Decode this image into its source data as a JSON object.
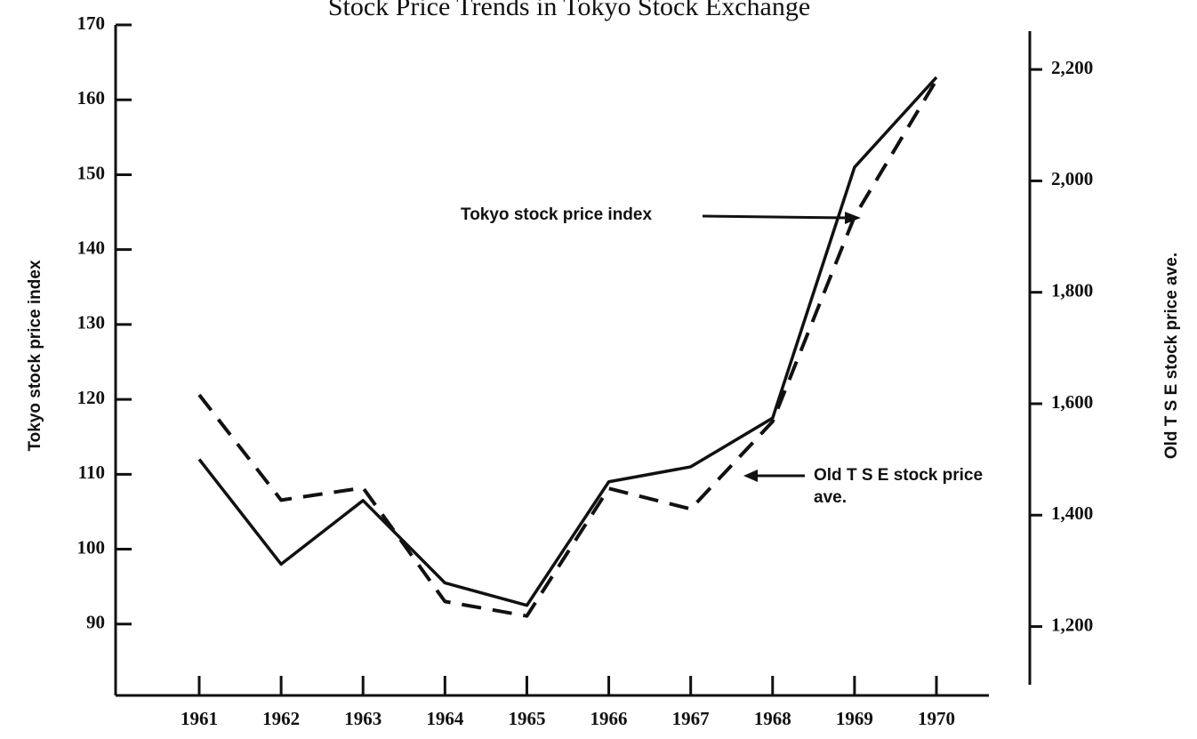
{
  "chart_data": {
    "type": "line",
    "title": "Stock Price Trends in Tokyo Stock Exchange",
    "ylabel": "Tokyo stock price index",
    "y2label": "Old T S E stock price ave.",
    "x": [
      1961,
      1962,
      1963,
      1964,
      1965,
      1966,
      1967,
      1968,
      1969,
      1970
    ],
    "xlim": [
      1960.0,
      1971.0
    ],
    "xticks": [
      1961,
      1962,
      1963,
      1964,
      1965,
      1966,
      1967,
      1968,
      1969,
      1970
    ],
    "ylim": [
      80,
      170
    ],
    "yticks": [
      90,
      100,
      110,
      120,
      130,
      140,
      150,
      160,
      170
    ],
    "y2lim": [
      1070,
      2280
    ],
    "y2ticks": [
      {
        "value": 1200,
        "label": "1,200"
      },
      {
        "value": 1400,
        "label": "1,400"
      },
      {
        "value": 1600,
        "label": "1,600"
      },
      {
        "value": 1800,
        "label": "1,800"
      },
      {
        "value": 2000,
        "label": "2,000"
      },
      {
        "value": 2200,
        "label": "2,200"
      }
    ],
    "series": [
      {
        "name": "Tokyo stock price index",
        "color": "#111111",
        "style": "solid",
        "values": [
          112,
          98,
          106.5,
          95.5,
          92.5,
          109,
          111,
          117.5,
          151,
          163
        ]
      },
      {
        "name": "Old T S E stock price ave.",
        "color": "#111111",
        "style": "dashed",
        "axis": "y2",
        "values": [
          1616,
          1427,
          1449,
          1245,
          1219,
          1448,
          1411,
          1568,
          1936,
          2181
        ]
      }
    ]
  }
}
